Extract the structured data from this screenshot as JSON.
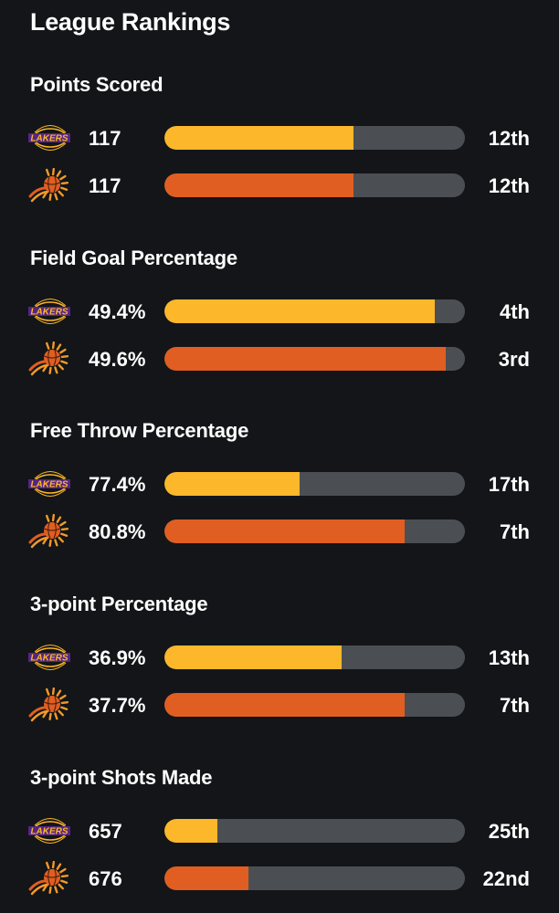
{
  "title": "League Rankings",
  "colors": {
    "lakers": "#fcb72b",
    "suns": "#e05e21",
    "track": "#4b4f53"
  },
  "teams": {
    "lakers": {
      "icon": "lakers-logo-icon",
      "wordmark": "LAKERS"
    },
    "suns": {
      "icon": "suns-logo-icon"
    }
  },
  "sections": [
    {
      "title": "Points Scored",
      "rows": [
        {
          "team": "lakers",
          "value": "117",
          "bar": 0.63,
          "rank": "12th"
        },
        {
          "team": "suns",
          "value": "117",
          "bar": 0.63,
          "rank": "12th"
        }
      ]
    },
    {
      "title": "Field Goal Percentage",
      "rows": [
        {
          "team": "lakers",
          "value": "49.4%",
          "bar": 0.9,
          "rank": "4th"
        },
        {
          "team": "suns",
          "value": "49.6%",
          "bar": 0.935,
          "rank": "3rd"
        }
      ]
    },
    {
      "title": "Free Throw Percentage",
      "rows": [
        {
          "team": "lakers",
          "value": "77.4%",
          "bar": 0.45,
          "rank": "17th"
        },
        {
          "team": "suns",
          "value": "80.8%",
          "bar": 0.8,
          "rank": "7th"
        }
      ]
    },
    {
      "title": "3-point Percentage",
      "rows": [
        {
          "team": "lakers",
          "value": "36.9%",
          "bar": 0.59,
          "rank": "13th"
        },
        {
          "team": "suns",
          "value": "37.7%",
          "bar": 0.8,
          "rank": "7th"
        }
      ]
    },
    {
      "title": "3-point Shots Made",
      "rows": [
        {
          "team": "lakers",
          "value": "657",
          "bar": 0.175,
          "rank": "25th"
        },
        {
          "team": "suns",
          "value": "676",
          "bar": 0.28,
          "rank": "22nd"
        }
      ]
    }
  ]
}
